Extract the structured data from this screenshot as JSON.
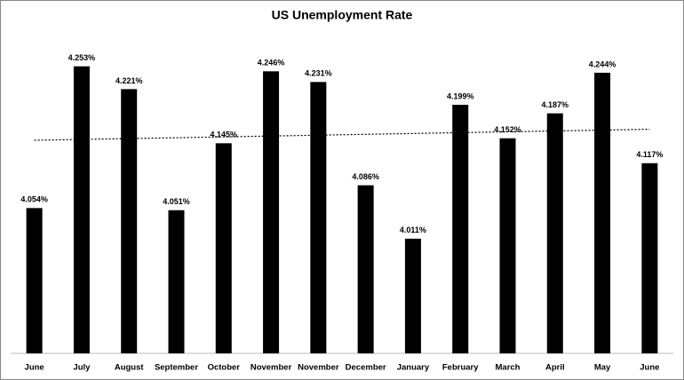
{
  "chart_data": {
    "type": "bar",
    "title": "US Unemployment Rate",
    "categories": [
      "June",
      "July",
      "August",
      "September",
      "October",
      "November",
      "November",
      "December",
      "January",
      "February",
      "March",
      "April",
      "May",
      "June"
    ],
    "values": [
      4.054,
      4.253,
      4.221,
      4.051,
      4.145,
      4.246,
      4.231,
      4.086,
      4.011,
      4.199,
      4.152,
      4.187,
      4.244,
      4.117
    ],
    "value_labels": [
      "4.054%",
      "4.253%",
      "4.221%",
      "4.051%",
      "4.145%",
      "4.246%",
      "4.231%",
      "4.086%",
      "4.011%",
      "4.199%",
      "4.152%",
      "4.187%",
      "4.244%",
      "4.117%"
    ],
    "color": "#000000",
    "ylim": [
      3.85,
      4.3
    ],
    "trendline": true
  }
}
